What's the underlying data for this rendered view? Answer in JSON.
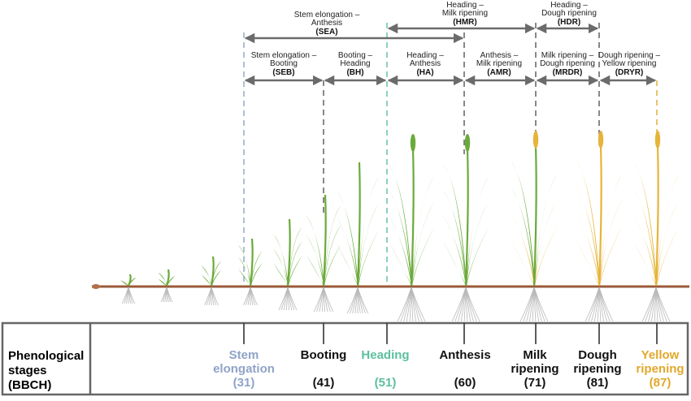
{
  "colors": {
    "stem": "#8fa3c8",
    "heading": "#5bbf9f",
    "yellow": "#e3a72a",
    "black": "#111111",
    "arrow": "#6b6b6b",
    "soil": "#9b5a3a",
    "leaf_green": "#6aaa3a",
    "leaf_yellow": "#e6b43a",
    "root": "#b9b9b9",
    "frame": "#666666"
  },
  "intervals": [
    {
      "line1": "Stem elongation –",
      "line2": "Anthesis",
      "code": "(SEA)"
    },
    {
      "line1": "Heading –",
      "line2": "Milk ripening",
      "code": "(HMR)"
    },
    {
      "line1": "Heading –",
      "line2": "Dough ripening",
      "code": "(HDR)"
    },
    {
      "line1": "Stem elongation –",
      "line2": "Booting",
      "code": "(SEB)"
    },
    {
      "line1": "Booting –",
      "line2": "Heading",
      "code": "(BH)"
    },
    {
      "line1": "Heading –",
      "line2": "Anthesis",
      "code": "(HA)"
    },
    {
      "line1": "Anthesis –",
      "line2": "Milk ripening",
      "code": "(AMR)"
    },
    {
      "line1": "Milk ripening –",
      "line2": "Dough ripening",
      "code": "(MRDR)"
    },
    {
      "line1": "Dough ripening –",
      "line2": "Yellow ripening",
      "code": "(DRYR)"
    }
  ],
  "table": {
    "side_line1": "Phenological",
    "side_line2": "stages",
    "side_line3": "(BBCH)"
  },
  "stages": [
    {
      "line1": "Stem",
      "line2": "elongation",
      "code": "(31)"
    },
    {
      "line1": "",
      "line2": "Booting",
      "code": "(41)"
    },
    {
      "line1": "",
      "line2": "Heading",
      "code": "(51)"
    },
    {
      "line1": "",
      "line2": "Anthesis",
      "code": "(60)"
    },
    {
      "line1": "Milk",
      "line2": "ripening",
      "code": "(71)"
    },
    {
      "line1": "Dough",
      "line2": "ripening",
      "code": "(81)"
    },
    {
      "line1": "Yellow",
      "line2": "ripening",
      "code": "(87)"
    }
  ]
}
